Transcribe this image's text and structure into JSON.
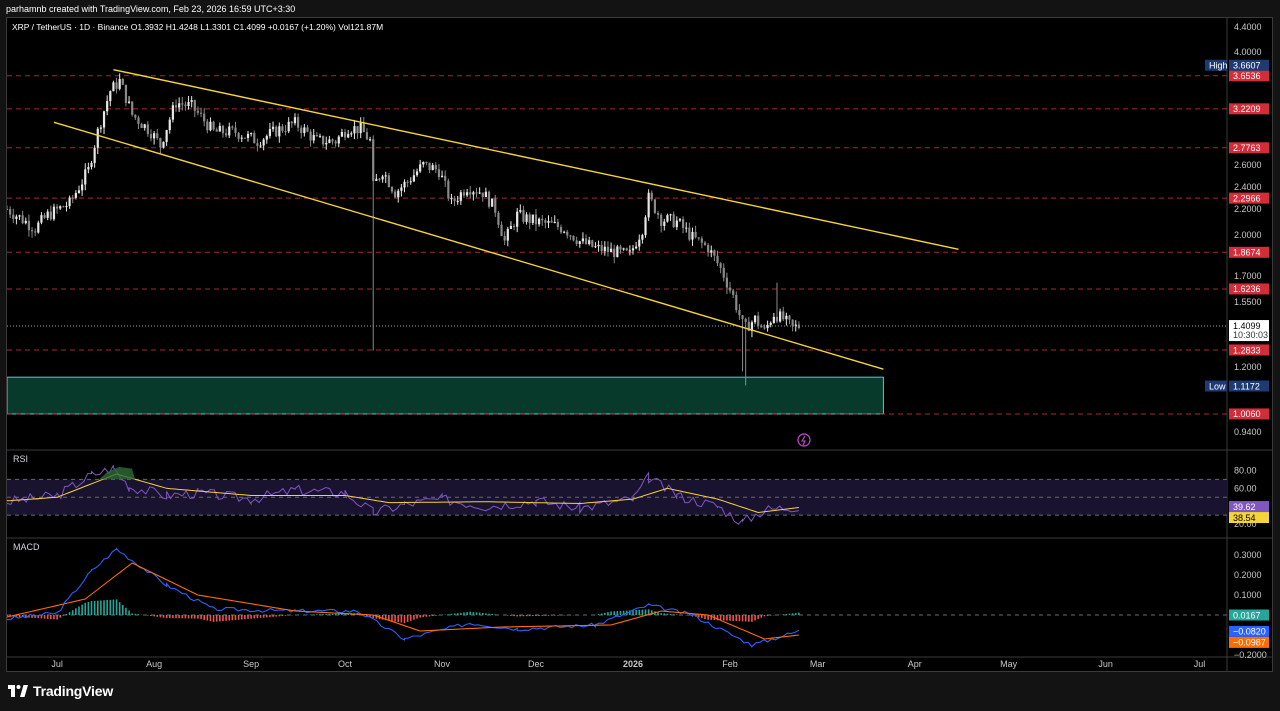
{
  "header": {
    "credit": "parhamnb created with TradingView.com, Feb 23, 2026 16:59 UTC+3:30"
  },
  "legend": {
    "symbol": "XRP / TetherUS · 1D · Binance",
    "open": "O1.3932",
    "high": "H1.4248",
    "low": "L1.3301",
    "close": "C1.4099",
    "change": "+0.0167 (+1.20%)",
    "volume": "Vol121.87M"
  },
  "footer": {
    "brand": "TradingView"
  },
  "colors": {
    "up": "#e8e8e8",
    "down": "#8a8a8a",
    "trendline": "#f5d33b",
    "level": "#c2323c",
    "zone_fill": "#073a2a",
    "zone_border": "#4fd1c5",
    "rsi_line": "#7e57c2",
    "rsi_ma": "#f5d33b",
    "macd": "#2962ff",
    "signal": "#ff6d00",
    "hist_up": "#26a69a",
    "hist_down": "#ef5350"
  },
  "chart_data": {
    "type": "candlestick",
    "price": {
      "scale": "log",
      "ylim": [
        0.9,
        4.5
      ],
      "ticks": [
        "4.4000",
        "4.0000",
        "2.6000",
        "2.4000",
        "2.2000",
        "2.0000",
        "1.7000",
        "1.5500",
        "1.2000",
        "0.9400"
      ],
      "high_marker": {
        "label": "High",
        "value": "3.6607"
      },
      "low_marker": {
        "label": "Low",
        "value": "1.1172"
      },
      "current": {
        "value": "1.4099",
        "countdown": "10:30:03"
      },
      "levels": [
        "3.6536",
        "3.2209",
        "2.7763",
        "2.2966",
        "1.8674",
        "1.6236",
        "1.2833",
        "1.0060"
      ],
      "zone": {
        "low": 1.006,
        "high": 1.155,
        "x_start": "2025-06-15",
        "x_end": "2026-03-22"
      },
      "trendlines": [
        {
          "name": "upper",
          "x": [
            "2025-07-19",
            "2026-04-15"
          ],
          "y": [
            3.74,
            1.89
          ]
        },
        {
          "name": "lower",
          "x": [
            "2025-06-30",
            "2026-03-22"
          ],
          "y": [
            3.06,
            1.19
          ]
        }
      ],
      "candles_daily_close": [
        {
          "x": "2025-06-15",
          "y": 2.2
        },
        {
          "x": "2025-06-24",
          "y": 2.05
        },
        {
          "x": "2025-06-28",
          "y": 2.15
        },
        {
          "x": "2025-07-05",
          "y": 2.25
        },
        {
          "x": "2025-07-11",
          "y": 2.55
        },
        {
          "x": "2025-07-14",
          "y": 2.95
        },
        {
          "x": "2025-07-18",
          "y": 3.45
        },
        {
          "x": "2025-07-21",
          "y": 3.58
        },
        {
          "x": "2025-07-25",
          "y": 3.15
        },
        {
          "x": "2025-07-31",
          "y": 2.95
        },
        {
          "x": "2025-08-03",
          "y": 2.8
        },
        {
          "x": "2025-08-08",
          "y": 3.3
        },
        {
          "x": "2025-08-13",
          "y": 3.25
        },
        {
          "x": "2025-08-20",
          "y": 2.95
        },
        {
          "x": "2025-08-27",
          "y": 2.95
        },
        {
          "x": "2025-09-03",
          "y": 2.85
        },
        {
          "x": "2025-09-10",
          "y": 2.98
        },
        {
          "x": "2025-09-15",
          "y": 3.05
        },
        {
          "x": "2025-09-22",
          "y": 2.85
        },
        {
          "x": "2025-09-28",
          "y": 2.85
        },
        {
          "x": "2025-10-02",
          "y": 3.0
        },
        {
          "x": "2025-10-06",
          "y": 2.98
        },
        {
          "x": "2025-10-09",
          "y": 2.85
        },
        {
          "x": "2025-10-10",
          "y": 2.4
        },
        {
          "x": "2025-10-13",
          "y": 2.55
        },
        {
          "x": "2025-10-17",
          "y": 2.35
        },
        {
          "x": "2025-10-21",
          "y": 2.45
        },
        {
          "x": "2025-10-26",
          "y": 2.6
        },
        {
          "x": "2025-10-31",
          "y": 2.55
        },
        {
          "x": "2025-11-04",
          "y": 2.25
        },
        {
          "x": "2025-11-09",
          "y": 2.4
        },
        {
          "x": "2025-11-14",
          "y": 2.35
        },
        {
          "x": "2025-11-18",
          "y": 2.2
        },
        {
          "x": "2025-11-21",
          "y": 1.95
        },
        {
          "x": "2025-11-25",
          "y": 2.15
        },
        {
          "x": "2025-12-01",
          "y": 2.1
        },
        {
          "x": "2025-12-05",
          "y": 2.08
        },
        {
          "x": "2025-12-10",
          "y": 2.05
        },
        {
          "x": "2025-12-15",
          "y": 1.95
        },
        {
          "x": "2025-12-20",
          "y": 1.9
        },
        {
          "x": "2025-12-26",
          "y": 1.87
        },
        {
          "x": "2025-12-31",
          "y": 1.85
        },
        {
          "x": "2026-01-04",
          "y": 2.05
        },
        {
          "x": "2026-01-06",
          "y": 2.3
        },
        {
          "x": "2026-01-10",
          "y": 2.12
        },
        {
          "x": "2026-01-15",
          "y": 2.1
        },
        {
          "x": "2026-01-20",
          "y": 1.98
        },
        {
          "x": "2026-01-25",
          "y": 1.9
        },
        {
          "x": "2026-01-29",
          "y": 1.75
        },
        {
          "x": "2026-02-02",
          "y": 1.58
        },
        {
          "x": "2026-02-05",
          "y": 1.42
        },
        {
          "x": "2026-02-06",
          "y": 1.4
        },
        {
          "x": "2026-02-09",
          "y": 1.45
        },
        {
          "x": "2026-02-12",
          "y": 1.38
        },
        {
          "x": "2026-02-15",
          "y": 1.48
        },
        {
          "x": "2026-02-18",
          "y": 1.45
        },
        {
          "x": "2026-02-21",
          "y": 1.4
        },
        {
          "x": "2026-02-23",
          "y": 1.41
        }
      ]
    },
    "rsi": {
      "label": "RSI",
      "ticks": [
        "80.00",
        "60.00",
        "20.00"
      ],
      "values": {
        "rsi": "39.62",
        "ma": "38.54"
      },
      "series_rsi": [
        {
          "x": "2025-06-15",
          "y": 45
        },
        {
          "x": "2025-07-01",
          "y": 52
        },
        {
          "x": "2025-07-12",
          "y": 75
        },
        {
          "x": "2025-07-19",
          "y": 83
        },
        {
          "x": "2025-07-24",
          "y": 62
        },
        {
          "x": "2025-08-05",
          "y": 52
        },
        {
          "x": "2025-08-15",
          "y": 55
        },
        {
          "x": "2025-09-01",
          "y": 48
        },
        {
          "x": "2025-09-15",
          "y": 58
        },
        {
          "x": "2025-10-01",
          "y": 55
        },
        {
          "x": "2025-10-10",
          "y": 33
        },
        {
          "x": "2025-10-20",
          "y": 42
        },
        {
          "x": "2025-11-01",
          "y": 48
        },
        {
          "x": "2025-11-15",
          "y": 40
        },
        {
          "x": "2025-12-01",
          "y": 46
        },
        {
          "x": "2025-12-15",
          "y": 38
        },
        {
          "x": "2026-01-01",
          "y": 48
        },
        {
          "x": "2026-01-06",
          "y": 72
        },
        {
          "x": "2026-01-15",
          "y": 52
        },
        {
          "x": "2026-01-28",
          "y": 40
        },
        {
          "x": "2026-02-05",
          "y": 22
        },
        {
          "x": "2026-02-12",
          "y": 36
        },
        {
          "x": "2026-02-23",
          "y": 40
        }
      ],
      "series_ma": [
        {
          "x": "2025-06-15",
          "y": 46
        },
        {
          "x": "2025-07-01",
          "y": 50
        },
        {
          "x": "2025-07-20",
          "y": 76
        },
        {
          "x": "2025-08-05",
          "y": 60
        },
        {
          "x": "2025-09-01",
          "y": 52
        },
        {
          "x": "2025-10-01",
          "y": 52
        },
        {
          "x": "2025-10-15",
          "y": 44
        },
        {
          "x": "2025-11-15",
          "y": 45
        },
        {
          "x": "2025-12-15",
          "y": 43
        },
        {
          "x": "2026-01-01",
          "y": 48
        },
        {
          "x": "2026-01-12",
          "y": 60
        },
        {
          "x": "2026-01-28",
          "y": 48
        },
        {
          "x": "2026-02-10",
          "y": 33
        },
        {
          "x": "2026-02-23",
          "y": 38.5
        }
      ]
    },
    "macd": {
      "label": "MACD",
      "ticks": [
        "0.3000",
        "0.2000",
        "0.1000",
        "−0.2000"
      ],
      "values": {
        "hist": "0.0167",
        "macd": "−0.0820",
        "signal": "−0.0987"
      },
      "series_macd": [
        {
          "x": "2025-06-15",
          "y": -0.02
        },
        {
          "x": "2025-07-01",
          "y": 0.01
        },
        {
          "x": "2025-07-12",
          "y": 0.22
        },
        {
          "x": "2025-07-20",
          "y": 0.33
        },
        {
          "x": "2025-08-05",
          "y": 0.15
        },
        {
          "x": "2025-08-20",
          "y": 0.03
        },
        {
          "x": "2025-09-15",
          "y": 0.02
        },
        {
          "x": "2025-10-05",
          "y": 0.02
        },
        {
          "x": "2025-10-20",
          "y": -0.12
        },
        {
          "x": "2025-11-10",
          "y": -0.04
        },
        {
          "x": "2025-11-25",
          "y": -0.07
        },
        {
          "x": "2025-12-20",
          "y": -0.05
        },
        {
          "x": "2026-01-06",
          "y": 0.05
        },
        {
          "x": "2026-01-20",
          "y": 0.0
        },
        {
          "x": "2026-02-08",
          "y": -0.15
        },
        {
          "x": "2026-02-23",
          "y": -0.08
        }
      ],
      "series_signal": [
        {
          "x": "2025-06-15",
          "y": -0.01
        },
        {
          "x": "2025-07-10",
          "y": 0.08
        },
        {
          "x": "2025-07-25",
          "y": 0.26
        },
        {
          "x": "2025-08-15",
          "y": 0.1
        },
        {
          "x": "2025-09-15",
          "y": 0.02
        },
        {
          "x": "2025-10-10",
          "y": 0.0
        },
        {
          "x": "2025-10-25",
          "y": -0.08
        },
        {
          "x": "2025-11-20",
          "y": -0.06
        },
        {
          "x": "2025-12-25",
          "y": -0.05
        },
        {
          "x": "2026-01-10",
          "y": 0.02
        },
        {
          "x": "2026-01-25",
          "y": 0.0
        },
        {
          "x": "2026-02-12",
          "y": -0.12
        },
        {
          "x": "2026-02-23",
          "y": -0.1
        }
      ]
    },
    "x_ticks": [
      "Jul",
      "Aug",
      "Sep",
      "Oct",
      "Nov",
      "Dec",
      "2026",
      "Feb",
      "Mar",
      "Apr",
      "May",
      "Jun",
      "Jul"
    ]
  }
}
